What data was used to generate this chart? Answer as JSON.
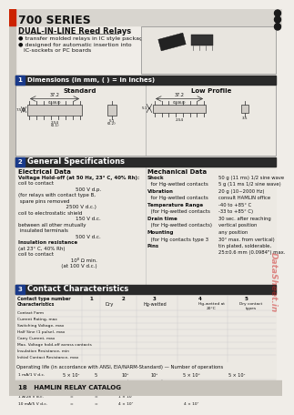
{
  "title": "700 SERIES",
  "subtitle": "DUAL-IN-LINE Reed Relays",
  "bullet1": "transfer molded relays in IC style packages",
  "bullet2": "designed for automatic insertion into\n   IC-sockets or PC boards",
  "dim_title": "Dimensions (in mm, ( ) = in Inches)",
  "dim_standard": "Standard",
  "dim_lowprofile": "Low Profile",
  "gen_spec_title": "General Specifications",
  "elec_title": "Electrical Data",
  "mech_title": "Mechanical Data",
  "elec_lines": [
    [
      "bold",
      "Voltage Hold-off (at 50 Hz, 23° C, 40% Rh):"
    ],
    [
      "",
      "coil to contact                      500 V d.p."
    ],
    [
      "",
      "(for relays with contact type B,"
    ],
    [
      "",
      " spare pins removed             2500 V d.c.)"
    ],
    [
      "",
      "coil to electrostatic shield          150 V d.c."
    ],
    [
      "",
      "between all other mutually"
    ],
    [
      "",
      " insulated terminals                  500 V d.c."
    ],
    [
      "",
      ""
    ],
    [
      "bold",
      "Insulation resistance"
    ],
    [
      "",
      "(at 23° C, 40% Rh)"
    ],
    [
      "",
      "coil to contact                   10⁸ Ω min."
    ],
    [
      "",
      "                               (at 100 V d.c.)"
    ]
  ],
  "mech_lines": [
    [
      "bold",
      "Shock"
    ],
    [
      "",
      "  for Hg-wetted contacts"
    ],
    [
      "",
      ""
    ],
    [
      "bold",
      "Vibration"
    ],
    [
      "",
      "  for Hg-wetted contacts"
    ],
    [
      "",
      ""
    ],
    [
      "bold",
      "Temperature Range"
    ],
    [
      "",
      "  (for Hg-wetted contacts"
    ],
    [
      "",
      ""
    ],
    [
      "bold",
      "Drain time"
    ],
    [
      "",
      "  (for Hg-wetted contacts)"
    ],
    [
      "",
      ""
    ],
    [
      "bold",
      "Mounting"
    ],
    [
      "",
      "  (for Hg contacts type 3"
    ],
    [
      "",
      ""
    ],
    [
      "bold",
      "Pins"
    ]
  ],
  "mech_vals": [
    "50 g (11 ms) 1/2 sine wave",
    "5 g (11 ms 1/2 sine wave)",
    "",
    "20 g (10~2000 Hz)",
    "consult HAMLIN office",
    "",
    "-40 to +85° C",
    "-33 to +85° C)",
    "",
    "30 sec. after reaching",
    "vertical position",
    "",
    "any position",
    "30° max. from vertical)",
    "",
    "tin plated, solderable,\n25±0.6 mm (0.0984\") max."
  ],
  "contact_title": "Contact Characteristics",
  "page_num": "18   HAMLIN RELAY CATALOG",
  "bg_color": "#f0ede8",
  "header_bg": "#1a1a1a",
  "section_bg": "#1a1a1a",
  "text_color": "#111111"
}
